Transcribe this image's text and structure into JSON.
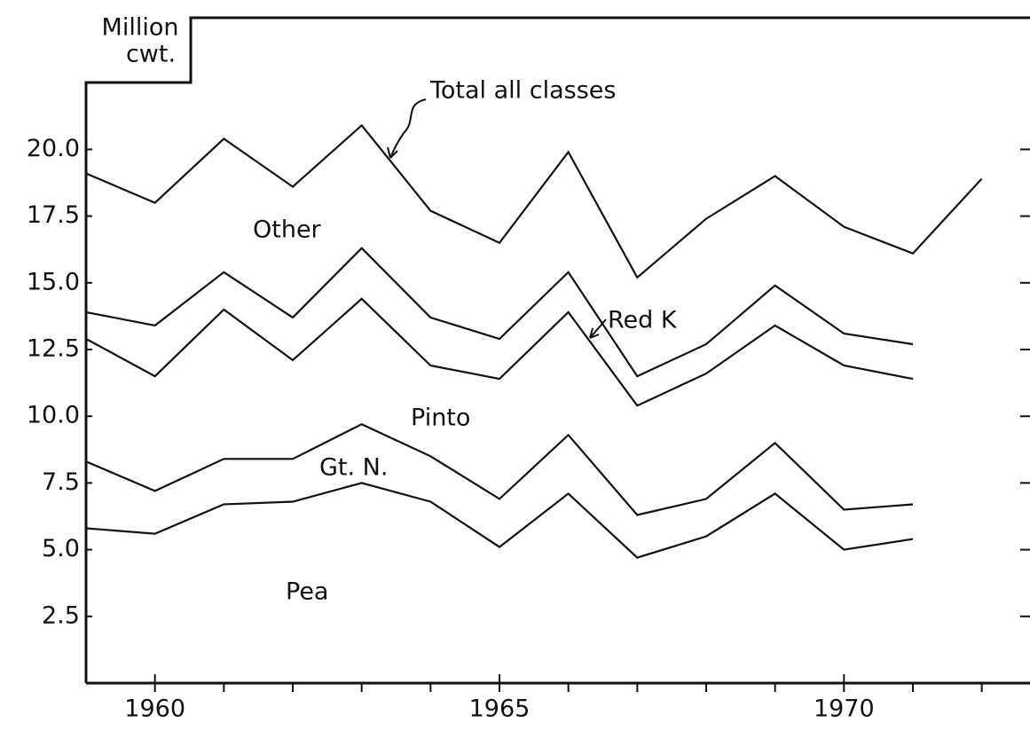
{
  "chart_data": {
    "type": "stacked-line",
    "ylabel": [
      "Million",
      "cwt."
    ],
    "x": [
      1959,
      1960,
      1961,
      1962,
      1963,
      1964,
      1965,
      1966,
      1967,
      1968,
      1969,
      1970,
      1971,
      1972
    ],
    "xlim": [
      1959,
      1972.7
    ],
    "xticks": [
      1960,
      1965,
      1970
    ],
    "xticks_minor": [
      1961,
      1962,
      1963,
      1964,
      1966,
      1967,
      1968,
      1969,
      1971,
      1972
    ],
    "ylim": [
      0,
      25
    ],
    "yticks": [
      2.5,
      {
        "value": 5,
        "label": "5.0"
      },
      7.5,
      {
        "value": 10,
        "label": "10.0"
      },
      12.5,
      {
        "value": 15,
        "label": "15.0"
      },
      17.5,
      {
        "value": 20,
        "label": "20.0"
      }
    ],
    "color": "#111111",
    "series": [
      {
        "name": "Pea",
        "values": [
          5.8,
          5.6,
          6.7,
          6.8,
          7.5,
          6.8,
          5.1,
          7.1,
          4.7,
          5.5,
          7.1,
          5.0,
          5.4,
          null
        ]
      },
      {
        "name": "Gt. N.",
        "values": [
          2.5,
          1.6,
          1.7,
          1.6,
          2.2,
          1.7,
          1.8,
          2.2,
          1.6,
          1.4,
          1.9,
          1.5,
          1.3,
          null
        ]
      },
      {
        "name": "Pinto",
        "values": [
          4.6,
          4.3,
          5.6,
          3.7,
          4.7,
          3.4,
          4.5,
          4.6,
          4.1,
          4.7,
          4.4,
          5.4,
          4.7,
          null
        ]
      },
      {
        "name": "Red K",
        "values": [
          1.0,
          1.9,
          1.4,
          1.6,
          1.9,
          1.8,
          1.5,
          1.5,
          1.1,
          1.1,
          1.5,
          1.2,
          1.3,
          null
        ]
      }
    ],
    "total": {
      "name": "Total all classes",
      "values": [
        19.1,
        18.0,
        20.4,
        18.6,
        20.9,
        17.7,
        16.5,
        19.9,
        15.2,
        17.4,
        19.0,
        17.1,
        16.1,
        18.9
      ]
    },
    "region_label": "Other"
  }
}
